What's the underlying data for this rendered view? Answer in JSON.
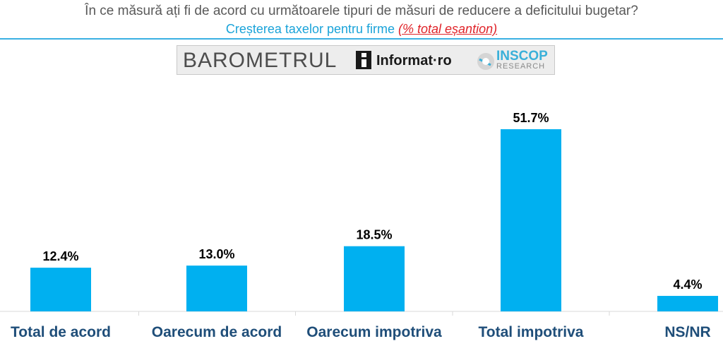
{
  "header": {
    "title": "În ce măsură ați fi de acord cu următoarele tipuri de măsuri de reducere a deficitului bugetar?",
    "subtitle": "Creșterea taxelor pentru firme",
    "subtitle_note": "(% total eșantion)"
  },
  "banner": {
    "barometrul": "BAROMETRUL",
    "informat": "Informat·ro",
    "inscop": "INSCOP",
    "research": "RESEARCH"
  },
  "colors": {
    "bar": "#00b0f0",
    "category_label": "#1f4e79",
    "value_label": "#000000",
    "subtitle": "#1aa3d9",
    "note": "#e0242a"
  },
  "chart_data": {
    "type": "bar",
    "categories": [
      "Total de acord",
      "Oarecum de acord",
      "Oarecum impotriva",
      "Total impotriva",
      "NS/NR"
    ],
    "values": [
      12.4,
      13.0,
      18.5,
      51.7,
      4.4
    ],
    "value_labels": [
      "12.4%",
      "13.0%",
      "18.5%",
      "51.7%",
      "4.4%"
    ],
    "unit": "%",
    "ylim": [
      0,
      60
    ],
    "grid": false,
    "legend": "none"
  }
}
